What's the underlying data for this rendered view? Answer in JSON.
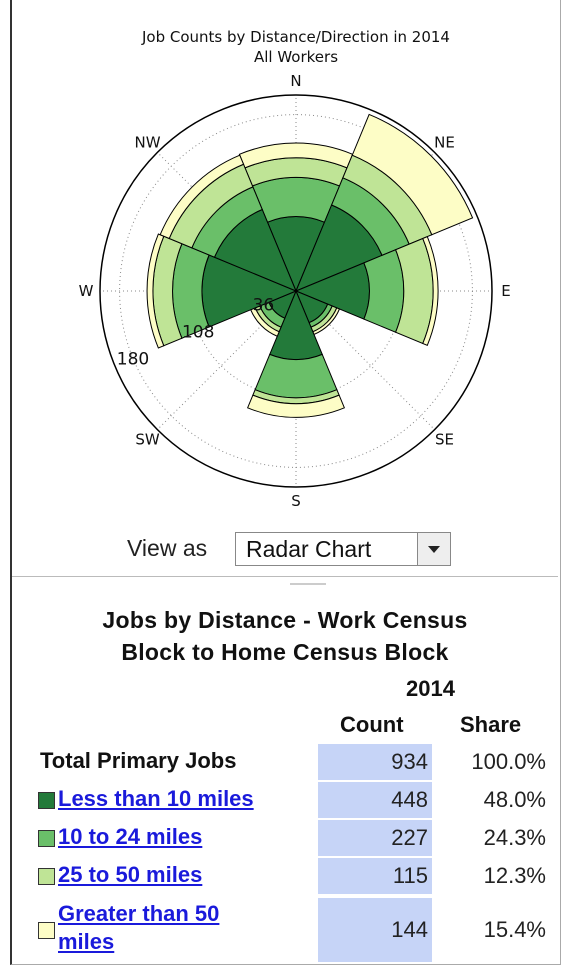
{
  "chart_data": {
    "type": "polar_bar",
    "title": "Job Counts by Distance/Direction in 2014",
    "subtitle": "All Workers",
    "categories": [
      "N",
      "NE",
      "E",
      "SE",
      "S",
      "SW",
      "W",
      "NW"
    ],
    "series": [
      {
        "color": "#237a3a",
        "values": [
          76,
          95,
          75,
          35,
          70,
          30,
          96,
          90
        ]
      },
      {
        "color": "#6abf69",
        "values": [
          40,
          30,
          35,
          5,
          39,
          10,
          30,
          25
        ]
      },
      {
        "color": "#bfe496",
        "values": [
          20,
          25,
          30,
          5,
          6,
          5,
          20,
          25
        ]
      },
      {
        "color": "#fdfdc6",
        "values": [
          15,
          45,
          5,
          3,
          14,
          5,
          6,
          10
        ]
      }
    ],
    "rlim": [
      0,
      200
    ],
    "rticks": [
      36,
      108,
      180
    ],
    "grid": true
  },
  "view_select": {
    "label": "View as",
    "selected": "Radar Chart"
  },
  "table": {
    "title_lines": [
      "Jobs by Distance - Work Census",
      "Block to Home Census Block"
    ],
    "year": "2014",
    "headers": [
      "Count",
      "Share"
    ],
    "total": {
      "label": "Total Primary Jobs",
      "count": 934,
      "share": "100.0%"
    },
    "rows": [
      {
        "label": "Less than 10 miles",
        "count": 448,
        "share": "48.0%"
      },
      {
        "label": "10 to 24 miles",
        "count": 227,
        "share": "24.3%"
      },
      {
        "label": "25 to 50 miles",
        "count": 115,
        "share": "12.3%"
      },
      {
        "label": "Greater than 50 miles",
        "count": 144,
        "share": "15.4%"
      }
    ]
  }
}
